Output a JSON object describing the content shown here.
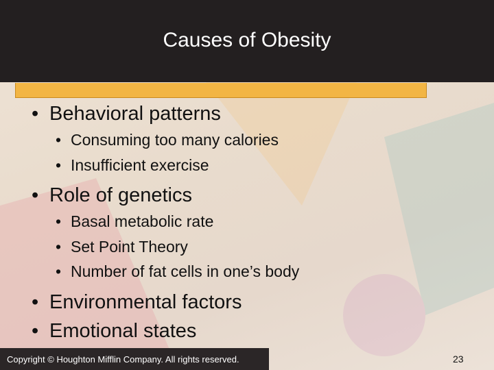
{
  "header": {
    "title": "Causes of Obesity"
  },
  "bullets": [
    {
      "text": "Behavioral patterns",
      "sub": [
        "Consuming too many calories",
        "Insufficient exercise"
      ]
    },
    {
      "text": "Role of genetics",
      "sub": [
        "Basal metabolic rate",
        "Set Point Theory",
        "Number of fat cells in one’s body"
      ]
    },
    {
      "text": "Environmental factors"
    },
    {
      "text": "Emotional states"
    }
  ],
  "footer": {
    "copyright": "Copyright © Houghton Mifflin Company. All rights reserved.",
    "page": "23"
  }
}
